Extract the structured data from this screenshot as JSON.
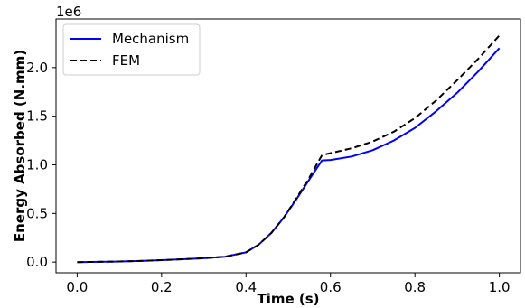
{
  "chart_data": {
    "type": "line",
    "xlabel": "Time (s)",
    "ylabel": "Energy Absorbed (N.mm)",
    "offset_label": "1e6",
    "xlim": [
      -0.05,
      1.05
    ],
    "ylim": [
      -0.11,
      2.5
    ],
    "xticks": [
      0.0,
      0.2,
      0.4,
      0.6,
      0.8,
      1.0
    ],
    "xtick_labels": [
      "0.0",
      "0.2",
      "0.4",
      "0.6",
      "0.8",
      "1.0"
    ],
    "yticks": [
      0.0,
      0.5,
      1.0,
      1.5,
      2.0
    ],
    "ytick_labels": [
      "0.0",
      "0.5",
      "1.0",
      "1.5",
      "2.0"
    ],
    "grid": false,
    "legend_position": "top-left",
    "series": [
      {
        "name": "Mechanism",
        "color": "#0000ff",
        "style": "solid",
        "x": [
          0.0,
          0.05,
          0.1,
          0.15,
          0.2,
          0.25,
          0.3,
          0.35,
          0.4,
          0.43,
          0.46,
          0.49,
          0.52,
          0.55,
          0.58,
          0.6,
          0.65,
          0.7,
          0.75,
          0.8,
          0.85,
          0.9,
          0.95,
          1.0
        ],
        "y": [
          0.0,
          0.002,
          0.006,
          0.012,
          0.02,
          0.029,
          0.04,
          0.055,
          0.1,
          0.18,
          0.3,
          0.46,
          0.65,
          0.85,
          1.045,
          1.05,
          1.085,
          1.15,
          1.25,
          1.38,
          1.55,
          1.74,
          1.96,
          2.2
        ]
      },
      {
        "name": "FEM",
        "color": "#000000",
        "style": "dashed",
        "x": [
          0.0,
          0.05,
          0.1,
          0.15,
          0.2,
          0.25,
          0.3,
          0.35,
          0.4,
          0.43,
          0.46,
          0.49,
          0.52,
          0.55,
          0.58,
          0.6,
          0.65,
          0.7,
          0.75,
          0.8,
          0.85,
          0.9,
          0.95,
          1.0
        ],
        "y": [
          0.0,
          0.002,
          0.006,
          0.012,
          0.02,
          0.029,
          0.04,
          0.055,
          0.1,
          0.18,
          0.3,
          0.46,
          0.66,
          0.87,
          1.1,
          1.12,
          1.17,
          1.24,
          1.34,
          1.48,
          1.66,
          1.87,
          2.09,
          2.33
        ]
      }
    ]
  }
}
